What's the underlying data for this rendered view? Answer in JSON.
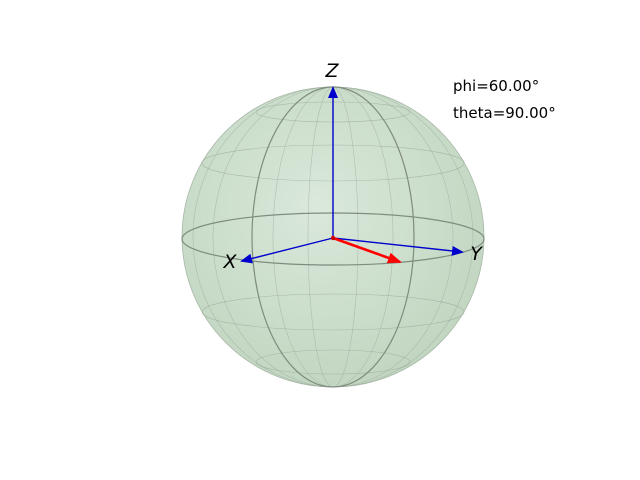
{
  "figure": {
    "axis_labels": {
      "x": "X",
      "y": "Y",
      "z": "Z"
    },
    "params": {
      "phi": "phi=60.00°",
      "theta": "theta=90.00°"
    },
    "colors": {
      "sphere_fill": "#c8dcc8",
      "wire": "#9aa69a",
      "axis_arrow": "#0000cc",
      "state_vector": "#ff0000",
      "origin": "#cc0000"
    },
    "state": {
      "phi_deg": 60.0,
      "theta_deg": 90.0
    }
  }
}
